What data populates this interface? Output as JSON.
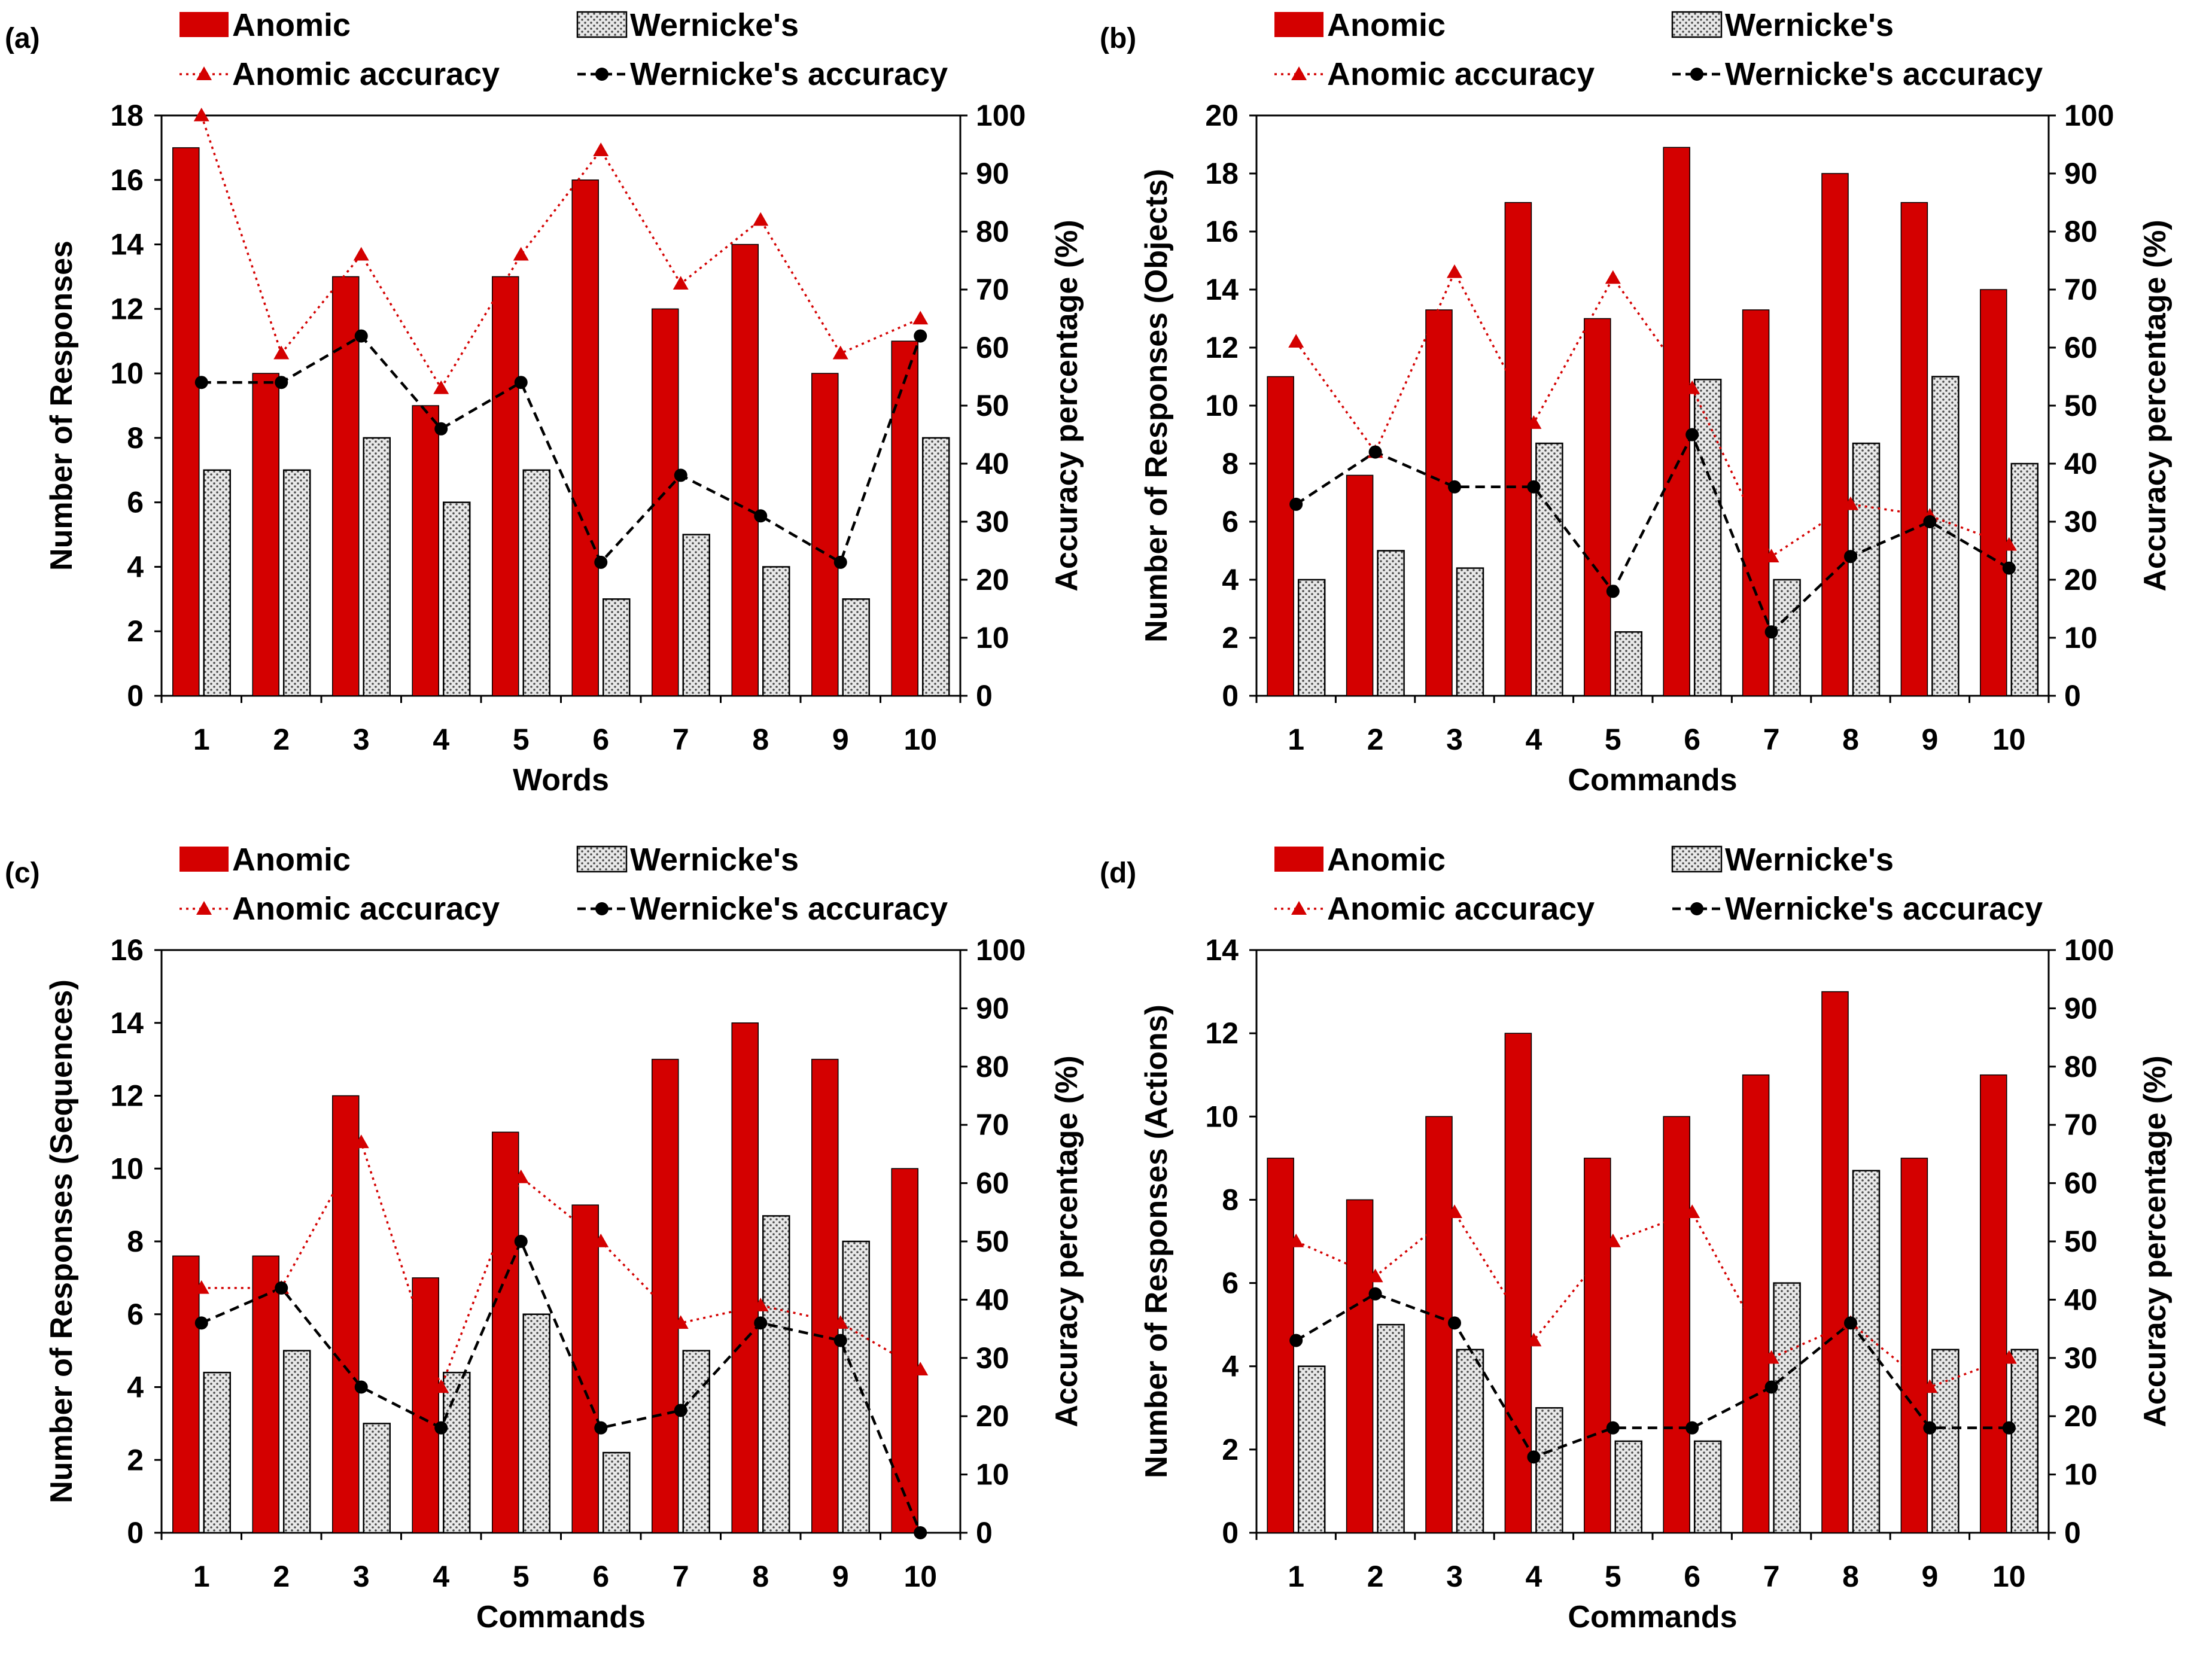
{
  "colors": {
    "anomic": "#d40000",
    "wernicke_fill": "#e8e8e8",
    "wernicke_dot": "#4a4a4a",
    "wernicke_line": "#000000",
    "anomic_line": "#d40000",
    "axis": "#000000"
  },
  "chart_data": [
    {
      "type": "bar",
      "panel": "(a)",
      "xlabel": "Words",
      "ylabel": "Number of Responses",
      "y2label": "Accuracy percentage (%)",
      "categories": [
        "1",
        "2",
        "3",
        "4",
        "5",
        "6",
        "7",
        "8",
        "9",
        "10"
      ],
      "ylim": [
        0,
        18
      ],
      "yticks": [
        0,
        2,
        4,
        6,
        8,
        10,
        12,
        14,
        16,
        18
      ],
      "y2lim": [
        0,
        100
      ],
      "y2ticks": [
        0,
        10,
        20,
        30,
        40,
        50,
        60,
        70,
        80,
        90,
        100
      ],
      "legend": [
        "Anomic",
        "Wernicke's",
        "Anomic accuracy",
        "Wernicke's accuracy"
      ],
      "series": [
        {
          "name": "Anomic",
          "kind": "bar",
          "axis": "left",
          "values": [
            17,
            10,
            13,
            9,
            13,
            16,
            12,
            14,
            10,
            11
          ]
        },
        {
          "name": "Wernicke's",
          "kind": "bar",
          "axis": "left",
          "values": [
            7,
            7,
            8,
            6,
            7,
            3,
            5,
            4,
            3,
            8
          ]
        },
        {
          "name": "Anomic accuracy",
          "kind": "line",
          "axis": "right",
          "values": [
            100,
            59,
            76,
            53,
            76,
            94,
            71,
            82,
            59,
            65
          ]
        },
        {
          "name": "Wernicke's accuracy",
          "kind": "line",
          "axis": "right",
          "values": [
            54,
            54,
            62,
            46,
            54,
            23,
            38,
            31,
            23,
            62
          ]
        }
      ]
    },
    {
      "type": "bar",
      "panel": "(b)",
      "xlabel": "Commands",
      "ylabel": "Number of Responses (Objects)",
      "y2label": "Accuracy percentage (%)",
      "categories": [
        "1",
        "2",
        "3",
        "4",
        "5",
        "6",
        "7",
        "8",
        "9",
        "10"
      ],
      "ylim": [
        0,
        20
      ],
      "yticks": [
        0,
        2,
        4,
        6,
        8,
        10,
        12,
        14,
        16,
        18,
        20
      ],
      "y2lim": [
        0,
        100
      ],
      "y2ticks": [
        0,
        10,
        20,
        30,
        40,
        50,
        60,
        70,
        80,
        90,
        100
      ],
      "legend": [
        "Anomic",
        "Wernicke's",
        "Anomic accuracy",
        "Wernicke's accuracy"
      ],
      "series": [
        {
          "name": "Anomic",
          "kind": "bar",
          "axis": "left",
          "values": [
            11,
            7.6,
            13.3,
            17,
            13,
            18.9,
            13.3,
            18,
            17,
            14
          ]
        },
        {
          "name": "Wernicke's",
          "kind": "bar",
          "axis": "left",
          "values": [
            4,
            5,
            4.4,
            8.7,
            2.2,
            10.9,
            4,
            8.7,
            11,
            8
          ]
        },
        {
          "name": "Anomic accuracy",
          "kind": "line",
          "axis": "right",
          "values": [
            61,
            42,
            73,
            47,
            72,
            53,
            24,
            33,
            31,
            26
          ]
        },
        {
          "name": "Wernicke's accuracy",
          "kind": "line",
          "axis": "right",
          "values": [
            33,
            42,
            36,
            36,
            18,
            45,
            11,
            24,
            30,
            22
          ]
        }
      ]
    },
    {
      "type": "bar",
      "panel": "(c)",
      "xlabel": "Commands",
      "ylabel": "Number of Responses (Sequences)",
      "y2label": "Accuracy percentage (%)",
      "categories": [
        "1",
        "2",
        "3",
        "4",
        "5",
        "6",
        "7",
        "8",
        "9",
        "10"
      ],
      "ylim": [
        0,
        16
      ],
      "yticks": [
        0,
        2,
        4,
        6,
        8,
        10,
        12,
        14,
        16
      ],
      "y2lim": [
        0,
        100
      ],
      "y2ticks": [
        0,
        10,
        20,
        30,
        40,
        50,
        60,
        70,
        80,
        90,
        100
      ],
      "legend": [
        "Anomic",
        "Wernicke's",
        "Anomic accuracy",
        "Wernicke's accuracy"
      ],
      "series": [
        {
          "name": "Anomic",
          "kind": "bar",
          "axis": "left",
          "values": [
            7.6,
            7.6,
            12,
            7,
            11,
            9,
            13,
            14,
            13,
            10
          ]
        },
        {
          "name": "Wernicke's",
          "kind": "bar",
          "axis": "left",
          "values": [
            4.4,
            5,
            3,
            4.4,
            6,
            2.2,
            5,
            8.7,
            8,
            0
          ]
        },
        {
          "name": "Anomic accuracy",
          "kind": "line",
          "axis": "right",
          "values": [
            42,
            42,
            67,
            25,
            61,
            50,
            36,
            39,
            36,
            28
          ]
        },
        {
          "name": "Wernicke's accuracy",
          "kind": "line",
          "axis": "right",
          "values": [
            36,
            42,
            25,
            18,
            50,
            18,
            21,
            36,
            33,
            0
          ]
        }
      ]
    },
    {
      "type": "bar",
      "panel": "(d)",
      "xlabel": "Commands",
      "ylabel": "Number of Responses (Actions)",
      "y2label": "Accuracy percentage (%)",
      "categories": [
        "1",
        "2",
        "3",
        "4",
        "5",
        "6",
        "7",
        "8",
        "9",
        "10"
      ],
      "ylim": [
        0,
        14
      ],
      "yticks": [
        0,
        2,
        4,
        6,
        8,
        10,
        12,
        14
      ],
      "y2lim": [
        0,
        100
      ],
      "y2ticks": [
        0,
        10,
        20,
        30,
        40,
        50,
        60,
        70,
        80,
        90,
        100
      ],
      "legend": [
        "Anomic",
        "Wernicke's",
        "Anomic accuracy",
        "Wernicke's accuracy"
      ],
      "series": [
        {
          "name": "Anomic",
          "kind": "bar",
          "axis": "left",
          "values": [
            9,
            8,
            10,
            12,
            9,
            10,
            11,
            13,
            9,
            11
          ]
        },
        {
          "name": "Wernicke's",
          "kind": "bar",
          "axis": "left",
          "values": [
            4,
            5,
            4.4,
            3,
            2.2,
            2.2,
            6,
            8.7,
            4.4,
            4.4
          ]
        },
        {
          "name": "Anomic accuracy",
          "kind": "line",
          "axis": "right",
          "values": [
            50,
            44,
            55,
            33,
            50,
            55,
            30,
            36,
            25,
            30
          ]
        },
        {
          "name": "Wernicke's accuracy",
          "kind": "line",
          "axis": "right",
          "values": [
            33,
            41,
            36,
            13,
            18,
            18,
            25,
            36,
            18,
            18
          ]
        }
      ]
    }
  ]
}
